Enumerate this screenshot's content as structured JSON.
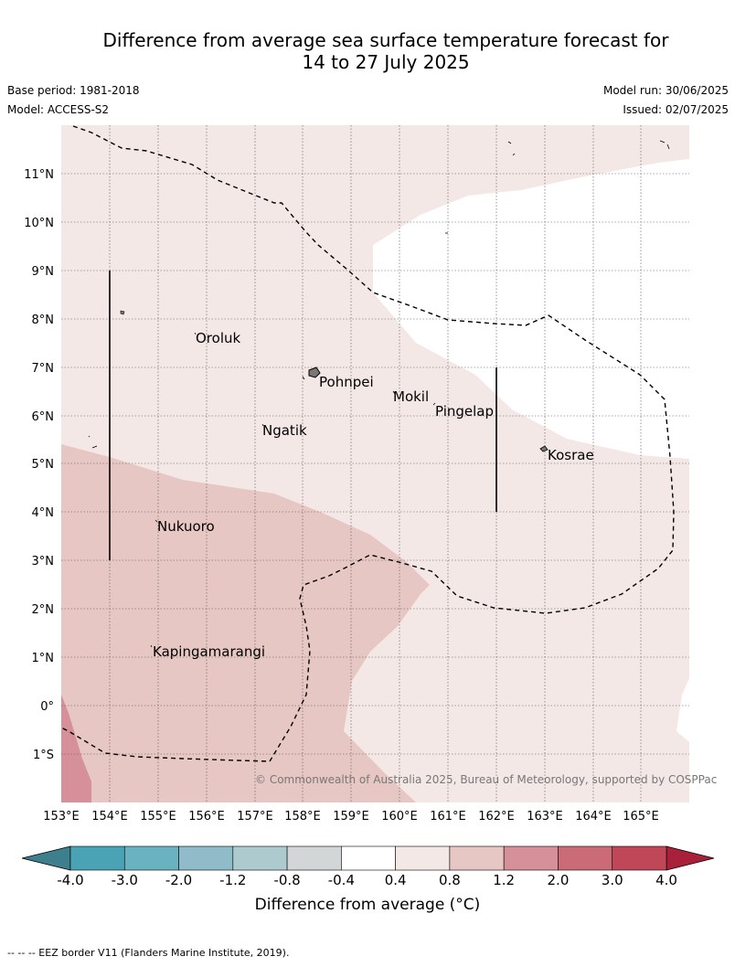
{
  "title_line1": "Difference from average sea surface temperature forecast for",
  "title_line2": "14 to 27 July 2025",
  "base_period": "Base period: 1981-2018",
  "model": "Model: ACCESS-S2",
  "model_run": "Model run: 30/06/2025",
  "issued": "Issued: 02/07/2025",
  "copyright": "© Commonwealth of Australia 2025, Bureau of Meteorology, supported by COSPPac",
  "lat_labels": [
    "11°N",
    "10°N",
    "9°N",
    "8°N",
    "7°N",
    "6°N",
    "5°N",
    "4°N",
    "3°N",
    "2°N",
    "1°N",
    "0°",
    "1°S"
  ],
  "lon_labels": [
    "153°E",
    "154°E",
    "155°E",
    "156°E",
    "157°E",
    "158°E",
    "159°E",
    "160°E",
    "161°E",
    "162°E",
    "163°E",
    "164°E",
    "165°E"
  ],
  "places": [
    "Oroluk",
    "Pohnpei",
    "Mokil",
    "Pingelap",
    "Ngatik",
    "Kosrae",
    "Nukuoro",
    "Kapingamarangi"
  ],
  "colorbar": {
    "ticks": [
      "-4.0",
      "-3.0",
      "-2.0",
      "-1.2",
      "-0.8",
      "-0.4",
      "0.4",
      "0.8",
      "1.2",
      "2.0",
      "3.0",
      "4.0"
    ],
    "colors": [
      "#4aa3b5",
      "#6bb2c1",
      "#8fbcc8",
      "#adcbcf",
      "#d3d6d6",
      "#ffffff",
      "#f4e8e7",
      "#e7c7c3",
      "#d6909a",
      "#cc6b78",
      "#bf4757"
    ],
    "under_color": "#3d7f8c",
    "over_color": "#a8203a",
    "label": "Difference from average (°C)"
  },
  "legend_note": "--  --  -- EEZ border V11 (Flanders Marine Institute, 2019)."
}
